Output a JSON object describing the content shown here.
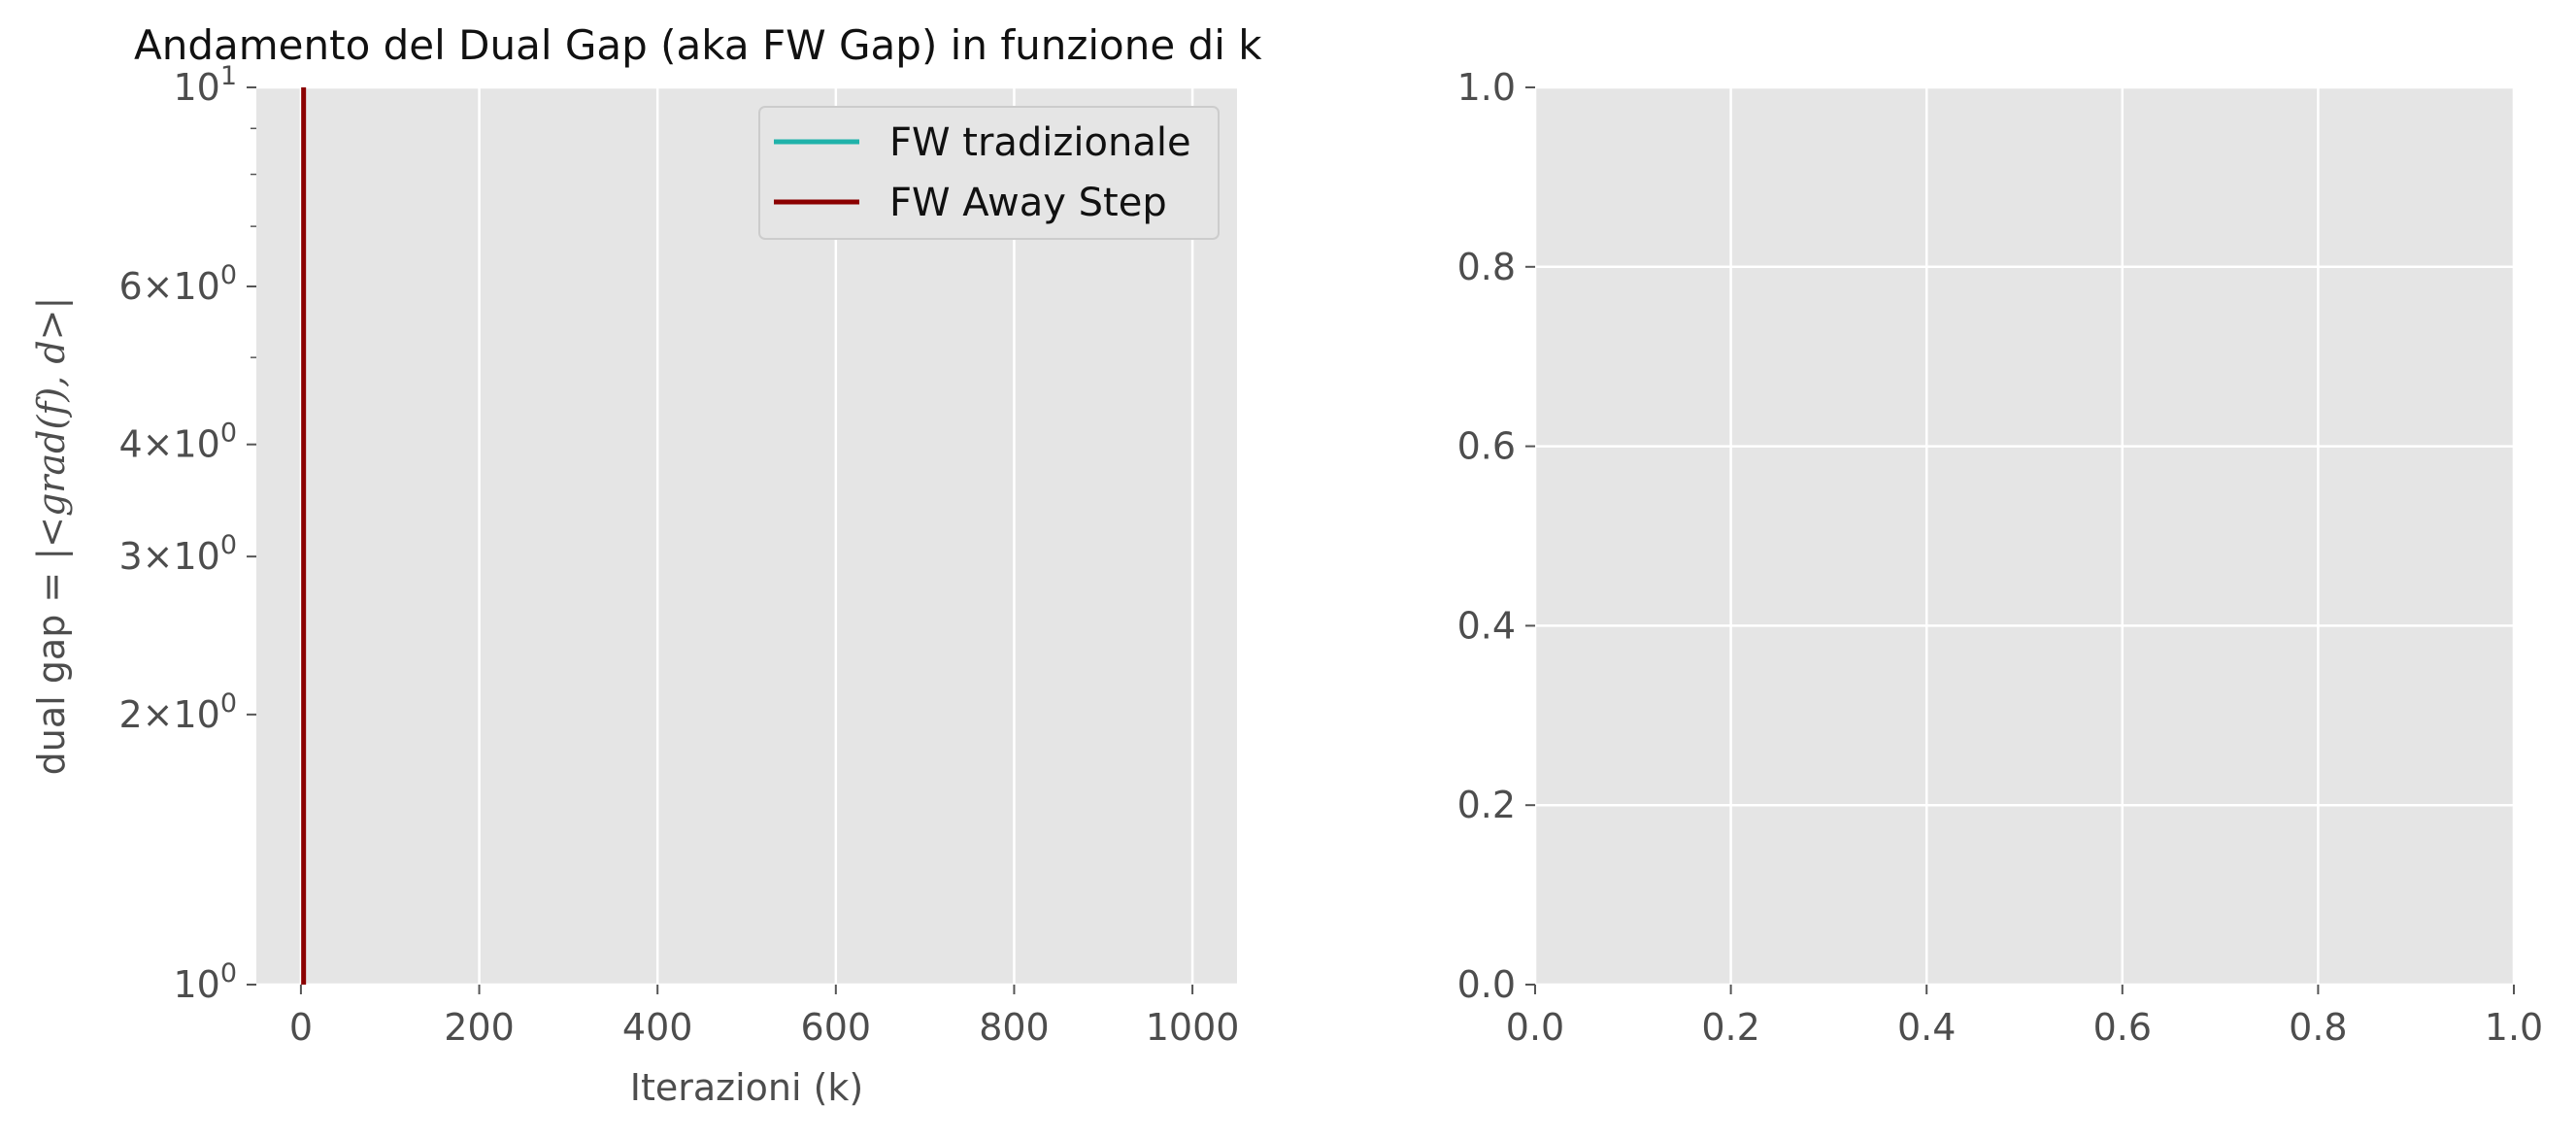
{
  "chart_data": [
    {
      "type": "line",
      "title": "Andamento del Dual Gap (aka FW Gap) in funzione di k",
      "xlabel": "Iterazioni (k)",
      "ylabel": "dual gap = |<grad(f), d>|",
      "yscale": "log",
      "xlim": [
        -50,
        1050
      ],
      "ylim": [
        1,
        10
      ],
      "grid": true,
      "legend_placement": "upper right",
      "x_ticks": [
        {
          "value": 0,
          "label": "0"
        },
        {
          "value": 200,
          "label": "200"
        },
        {
          "value": 400,
          "label": "400"
        },
        {
          "value": 600,
          "label": "600"
        },
        {
          "value": 800,
          "label": "800"
        },
        {
          "value": 1000,
          "label": "1000"
        }
      ],
      "y_ticks": [
        {
          "value": 1,
          "mant": "",
          "exp": "0"
        },
        {
          "value": 2,
          "mant": "2",
          "exp": "0"
        },
        {
          "value": 3,
          "mant": "3",
          "exp": "0"
        },
        {
          "value": 4,
          "mant": "4",
          "exp": "0"
        },
        {
          "value": 6,
          "mant": "6",
          "exp": "0"
        },
        {
          "value": 10,
          "mant": "",
          "exp": "1"
        }
      ],
      "y_minor_ticks": [
        5,
        7,
        8,
        9
      ],
      "series": [
        {
          "name": "FW tradizionale",
          "color": "#20b2aa",
          "x": [],
          "y": []
        },
        {
          "name": "FW Away Step",
          "color": "#8b0000",
          "x": [
            3,
            3
          ],
          "y": [
            1,
            10
          ]
        }
      ]
    },
    {
      "type": "line",
      "title": "",
      "xlabel": "",
      "ylabel": "",
      "xlim": [
        0,
        1
      ],
      "ylim": [
        0,
        1
      ],
      "grid": true,
      "x_ticks": [
        {
          "value": 0.0,
          "label": "0.0"
        },
        {
          "value": 0.2,
          "label": "0.2"
        },
        {
          "value": 0.4,
          "label": "0.4"
        },
        {
          "value": 0.6,
          "label": "0.6"
        },
        {
          "value": 0.8,
          "label": "0.8"
        },
        {
          "value": 1.0,
          "label": "1.0"
        }
      ],
      "y_ticks": [
        {
          "value": 0.0,
          "label": "0.0"
        },
        {
          "value": 0.2,
          "label": "0.2"
        },
        {
          "value": 0.4,
          "label": "0.4"
        },
        {
          "value": 0.6,
          "label": "0.6"
        },
        {
          "value": 0.8,
          "label": "0.8"
        },
        {
          "value": 1.0,
          "label": "1.0"
        }
      ],
      "series": []
    }
  ],
  "colors": {
    "axes_bg": "#e5e5e5",
    "grid": "#ffffff",
    "tick_text": "#4d4d4d"
  }
}
